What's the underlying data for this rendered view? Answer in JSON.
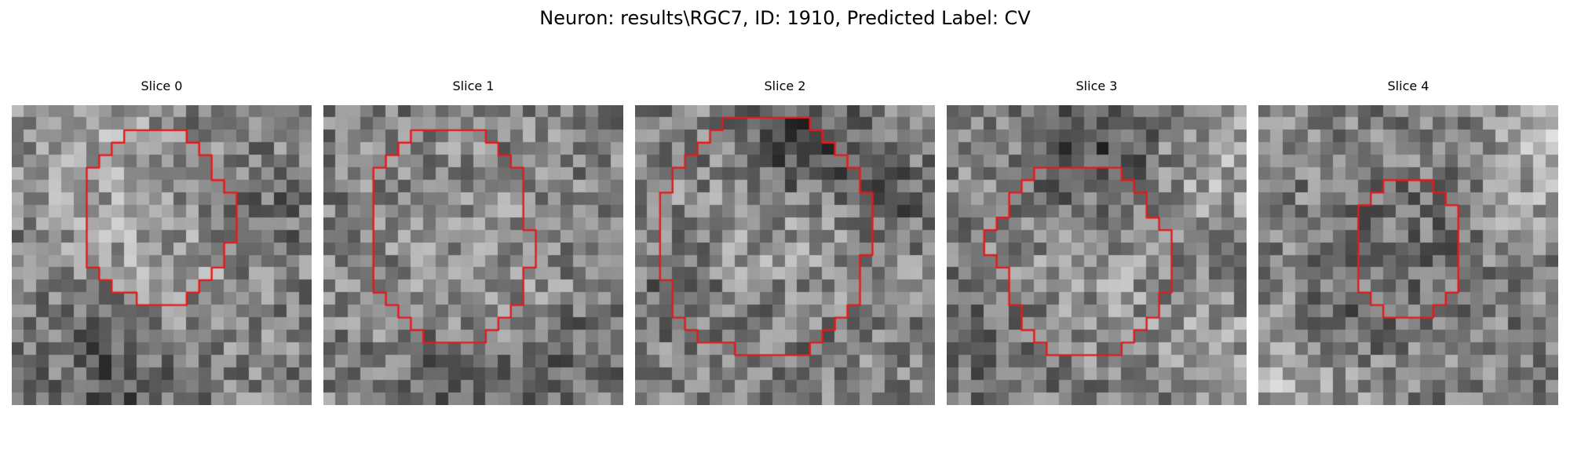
{
  "figure": {
    "title": "Neuron: results\\RGC7, ID: 1910, Predicted Label: CV",
    "colormap": "grayscale",
    "contour_color": "#e41a1c",
    "panels": [
      {
        "title": "Slice 0",
        "contour": [
          [
            9,
            2
          ],
          [
            9,
            3
          ],
          [
            8,
            3
          ],
          [
            8,
            4
          ],
          [
            7,
            4
          ],
          [
            7,
            5
          ],
          [
            6,
            5
          ],
          [
            6,
            13
          ],
          [
            7,
            13
          ],
          [
            7,
            14
          ],
          [
            8,
            14
          ],
          [
            8,
            15
          ],
          [
            10,
            15
          ],
          [
            10,
            16
          ],
          [
            14,
            16
          ],
          [
            14,
            15
          ],
          [
            15,
            15
          ],
          [
            15,
            14
          ],
          [
            16,
            14
          ],
          [
            16,
            13
          ],
          [
            17,
            13
          ],
          [
            17,
            11
          ],
          [
            18,
            11
          ],
          [
            18,
            7
          ],
          [
            17,
            7
          ],
          [
            17,
            6
          ],
          [
            16,
            6
          ],
          [
            16,
            4
          ],
          [
            15,
            4
          ],
          [
            15,
            3
          ],
          [
            14,
            3
          ],
          [
            14,
            2
          ]
        ],
        "blobs": [
          [
            0.47,
            0.52,
            0.3,
            0.12
          ],
          [
            0.35,
            0.86,
            0.22,
            -0.18
          ],
          [
            0.27,
            0.14,
            0.22,
            0.14
          ],
          [
            0.88,
            0.36,
            0.14,
            -0.1
          ]
        ]
      },
      {
        "title": "Slice 1",
        "contour": [
          [
            7,
            2
          ],
          [
            7,
            3
          ],
          [
            6,
            3
          ],
          [
            6,
            4
          ],
          [
            5,
            4
          ],
          [
            5,
            5
          ],
          [
            4,
            5
          ],
          [
            4,
            15
          ],
          [
            5,
            15
          ],
          [
            5,
            16
          ],
          [
            6,
            16
          ],
          [
            6,
            17
          ],
          [
            7,
            17
          ],
          [
            7,
            18
          ],
          [
            8,
            18
          ],
          [
            8,
            19
          ],
          [
            13,
            19
          ],
          [
            13,
            18
          ],
          [
            14,
            18
          ],
          [
            14,
            17
          ],
          [
            15,
            17
          ],
          [
            15,
            16
          ],
          [
            16,
            16
          ],
          [
            16,
            13
          ],
          [
            17,
            13
          ],
          [
            17,
            10
          ],
          [
            16,
            10
          ],
          [
            16,
            5
          ],
          [
            15,
            5
          ],
          [
            15,
            4
          ],
          [
            14,
            4
          ],
          [
            14,
            3
          ],
          [
            13,
            3
          ],
          [
            13,
            2
          ]
        ],
        "blobs": [
          [
            0.5,
            0.52,
            0.34,
            0.08
          ],
          [
            0.42,
            0.96,
            0.18,
            -0.16
          ],
          [
            0.82,
            0.86,
            0.18,
            -0.1
          ]
        ]
      },
      {
        "title": "Slice 2",
        "contour": [
          [
            7,
            1
          ],
          [
            7,
            2
          ],
          [
            6,
            2
          ],
          [
            6,
            3
          ],
          [
            5,
            3
          ],
          [
            5,
            4
          ],
          [
            4,
            4
          ],
          [
            4,
            5
          ],
          [
            3,
            5
          ],
          [
            3,
            7
          ],
          [
            2,
            7
          ],
          [
            2,
            14
          ],
          [
            3,
            14
          ],
          [
            3,
            17
          ],
          [
            4,
            17
          ],
          [
            4,
            18
          ],
          [
            5,
            18
          ],
          [
            5,
            19
          ],
          [
            8,
            19
          ],
          [
            8,
            20
          ],
          [
            14,
            20
          ],
          [
            14,
            19
          ],
          [
            15,
            19
          ],
          [
            15,
            18
          ],
          [
            16,
            18
          ],
          [
            16,
            17
          ],
          [
            17,
            17
          ],
          [
            17,
            16
          ],
          [
            18,
            16
          ],
          [
            18,
            12
          ],
          [
            19,
            12
          ],
          [
            19,
            7
          ],
          [
            18,
            7
          ],
          [
            18,
            5
          ],
          [
            17,
            5
          ],
          [
            17,
            4
          ],
          [
            16,
            4
          ],
          [
            16,
            3
          ],
          [
            15,
            3
          ],
          [
            15,
            2
          ],
          [
            14,
            2
          ],
          [
            14,
            1
          ]
        ],
        "blobs": [
          [
            0.52,
            0.48,
            0.36,
            0.12
          ],
          [
            0.55,
            0.12,
            0.22,
            -0.24
          ],
          [
            0.85,
            0.3,
            0.14,
            -0.18
          ],
          [
            0.15,
            0.62,
            0.14,
            -0.14
          ],
          [
            0.52,
            0.72,
            0.2,
            -0.1
          ]
        ]
      },
      {
        "title": "Slice 3",
        "contour": [
          [
            7,
            5
          ],
          [
            7,
            6
          ],
          [
            6,
            6
          ],
          [
            6,
            7
          ],
          [
            5,
            7
          ],
          [
            5,
            9
          ],
          [
            4,
            9
          ],
          [
            4,
            10
          ],
          [
            3,
            10
          ],
          [
            3,
            12
          ],
          [
            4,
            12
          ],
          [
            4,
            13
          ],
          [
            5,
            13
          ],
          [
            5,
            16
          ],
          [
            6,
            16
          ],
          [
            6,
            18
          ],
          [
            7,
            18
          ],
          [
            7,
            19
          ],
          [
            8,
            19
          ],
          [
            8,
            20
          ],
          [
            14,
            20
          ],
          [
            14,
            19
          ],
          [
            15,
            19
          ],
          [
            15,
            18
          ],
          [
            16,
            18
          ],
          [
            16,
            17
          ],
          [
            17,
            17
          ],
          [
            17,
            15
          ],
          [
            18,
            15
          ],
          [
            18,
            10
          ],
          [
            17,
            10
          ],
          [
            17,
            9
          ],
          [
            16,
            9
          ],
          [
            16,
            7
          ],
          [
            15,
            7
          ],
          [
            15,
            6
          ],
          [
            14,
            6
          ],
          [
            14,
            5
          ]
        ],
        "blobs": [
          [
            0.52,
            0.52,
            0.26,
            0.1
          ],
          [
            0.48,
            0.16,
            0.22,
            -0.2
          ],
          [
            0.92,
            0.2,
            0.18,
            0.16
          ],
          [
            0.12,
            0.82,
            0.18,
            -0.1
          ],
          [
            0.92,
            0.82,
            0.18,
            0.12
          ]
        ]
      },
      {
        "title": "Slice 4",
        "contour": [
          [
            10,
            6
          ],
          [
            10,
            7
          ],
          [
            9,
            7
          ],
          [
            9,
            8
          ],
          [
            8,
            8
          ],
          [
            8,
            15
          ],
          [
            9,
            15
          ],
          [
            9,
            16
          ],
          [
            10,
            16
          ],
          [
            10,
            17
          ],
          [
            14,
            17
          ],
          [
            14,
            16
          ],
          [
            15,
            16
          ],
          [
            15,
            15
          ],
          [
            16,
            15
          ],
          [
            16,
            8
          ],
          [
            15,
            8
          ],
          [
            15,
            7
          ],
          [
            14,
            7
          ],
          [
            14,
            6
          ]
        ],
        "blobs": [
          [
            0.52,
            0.46,
            0.3,
            -0.06
          ],
          [
            0.9,
            0.4,
            0.14,
            0.08
          ],
          [
            0.95,
            0.12,
            0.22,
            0.18
          ],
          [
            0.1,
            0.94,
            0.22,
            0.18
          ],
          [
            0.3,
            0.74,
            0.12,
            -0.16
          ]
        ]
      }
    ]
  }
}
